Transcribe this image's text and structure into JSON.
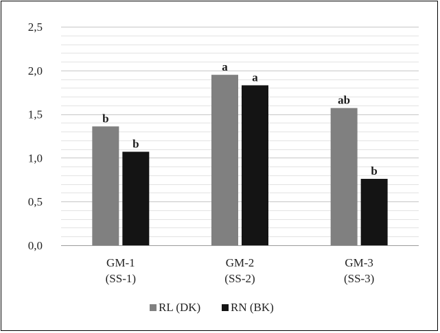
{
  "chart_data": {
    "type": "bar",
    "title": "",
    "xlabel": "",
    "ylabel": "",
    "ylim": [
      0,
      2.5
    ],
    "yticks": [
      "0,0",
      "0,5",
      "1,0",
      "1,5",
      "2,0",
      "2,5"
    ],
    "minor_grid_step": 0.1,
    "grid": true,
    "legend_position": "bottom",
    "categories": [
      [
        "GM-1",
        "(SS-1)"
      ],
      [
        "GM-2",
        "(SS-2)"
      ],
      [
        "GM-3",
        "(SS-3)"
      ]
    ],
    "series": [
      {
        "name": "RL (DK)",
        "color": "#808080",
        "values": [
          1.36,
          1.95,
          1.57
        ],
        "labels": [
          "b",
          "a",
          "ab"
        ]
      },
      {
        "name": "RN (BK)",
        "color": "#141414",
        "values": [
          1.07,
          1.83,
          0.76
        ],
        "labels": [
          "b",
          "a",
          "b"
        ]
      }
    ]
  }
}
